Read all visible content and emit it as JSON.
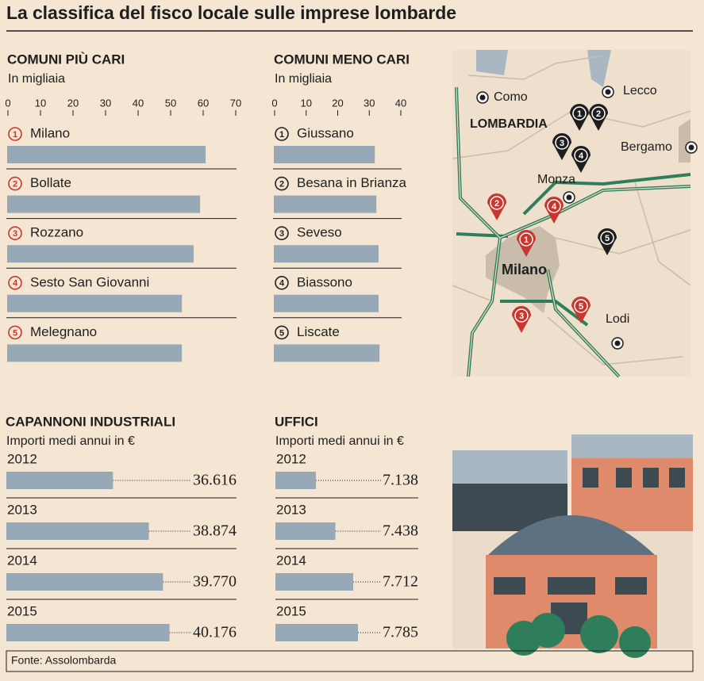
{
  "title": "La classifica del fisco locale sulle imprese lombarde",
  "source": "Fonte: Assolombarda",
  "chart_data": [
    {
      "type": "bar",
      "title": "COMUNI PIÙ CARI",
      "subtitle": "In migliaia",
      "ranks": [
        1,
        2,
        3,
        4,
        5
      ],
      "categories": [
        "Milano",
        "Bollate",
        "Rozzano",
        "Sesto San Giovanni",
        "Melegnano"
      ],
      "values": [
        61,
        59.3,
        57.3,
        53.7,
        53.7
      ],
      "xlim": [
        0,
        70
      ],
      "xticks": [
        0,
        10,
        20,
        30,
        40,
        50,
        60,
        70
      ],
      "color": "#97a9b6",
      "rank_color": "#c8362e"
    },
    {
      "type": "bar",
      "title": "COMUNI MENO CARI",
      "subtitle": "In migliaia",
      "ranks": [
        1,
        2,
        3,
        4,
        5
      ],
      "categories": [
        "Giussano",
        "Besana in Brianza",
        "Seveso",
        "Biassono",
        "Liscate"
      ],
      "values": [
        32,
        32.5,
        33.2,
        33.2,
        33.5
      ],
      "xlim": [
        0,
        40
      ],
      "xticks": [
        0,
        10,
        20,
        30,
        40
      ],
      "color": "#97a9b6",
      "rank_color": "#222222"
    },
    {
      "type": "bar",
      "title": "CAPANNONI INDUSTRIALI",
      "subtitle": "Importi medi annui in €",
      "categories": [
        "2012",
        "2013",
        "2014",
        "2015"
      ],
      "values": [
        36616,
        38874,
        39770,
        40176
      ],
      "value_labels": [
        "36.616",
        "38.874",
        "39.770",
        "40.176"
      ],
      "xlim": [
        29900,
        44400
      ],
      "color": "#97a9b6"
    },
    {
      "type": "bar",
      "title": "UFFICI",
      "subtitle": "Importi medi annui in €",
      "categories": [
        "2012",
        "2013",
        "2014",
        "2015"
      ],
      "values": [
        7138,
        7438,
        7712,
        7785
      ],
      "value_labels": [
        "7.138",
        "7.438",
        "7.712",
        "7.785"
      ],
      "xlim": [
        6515,
        8713
      ],
      "color": "#97a9b6"
    }
  ],
  "map": {
    "region": "LOMBARDIA",
    "cities": [
      "Como",
      "Lecco",
      "Bergamo",
      "Monza",
      "Milano",
      "Lodi"
    ],
    "red_markers": [
      1,
      2,
      3,
      4,
      5
    ],
    "black_markers": [
      1,
      2,
      3,
      4,
      5
    ]
  }
}
